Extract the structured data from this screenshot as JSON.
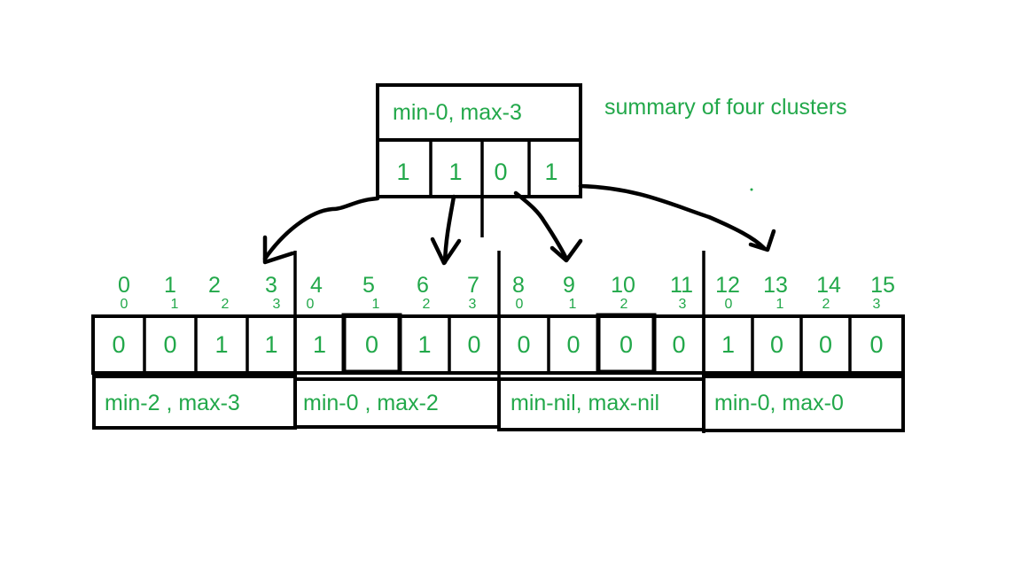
{
  "colors": {
    "text": "#22a84a",
    "line": "#000000"
  },
  "summary": {
    "label": "min-0, max-3",
    "title": "summary of four clusters",
    "bits": [
      "1",
      "1",
      "0",
      "1"
    ]
  },
  "indices": [
    "0",
    "1",
    "2",
    "3",
    "4",
    "5",
    "6",
    "7",
    "8",
    "9",
    "10",
    "11",
    "12",
    "13",
    "14",
    "15"
  ],
  "local_indices": [
    "0",
    "1",
    "2",
    "3",
    "0",
    "1",
    "2",
    "3",
    "0",
    "1",
    "2",
    "3",
    "0",
    "1",
    "2",
    "3"
  ],
  "bits": [
    "0",
    "0",
    "1",
    "1",
    "1",
    "0",
    "1",
    "0",
    "0",
    "0",
    "0",
    "0",
    "1",
    "0",
    "0",
    "0"
  ],
  "clusters": [
    {
      "label": "min-2 , max-3"
    },
    {
      "label": "min-0 , max-2"
    },
    {
      "label": "min-nil, max-nil"
    },
    {
      "label": "min-0, max-0"
    }
  ]
}
